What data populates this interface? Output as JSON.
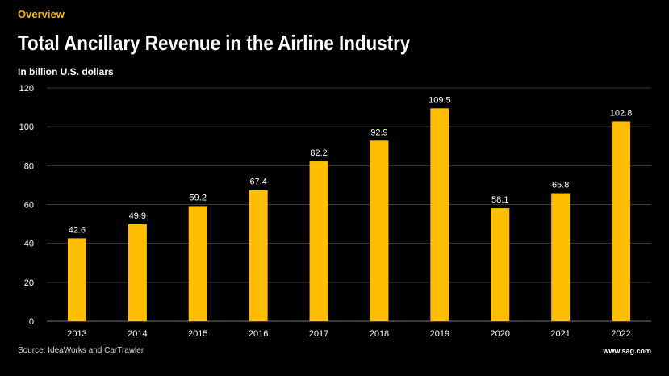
{
  "header": {
    "kicker": "Overview",
    "title": "Total Ancillary Revenue in the Airline Industry",
    "subtitle": "In billion U.S. dollars"
  },
  "footer": {
    "source": "Source: IdeaWorks and CarTrawler",
    "brand": "www.sag.com"
  },
  "colors": {
    "background": "#000000",
    "bar": "#FFBF00",
    "accent": "#FFB800",
    "grid": "#3a3a3a",
    "text": "#ffffff"
  },
  "chart_data": {
    "type": "bar",
    "title": "Total Ancillary Revenue in the Airline Industry",
    "ylabel": "In billion U.S. dollars",
    "xlabel": "",
    "categories": [
      "2013",
      "2014",
      "2015",
      "2016",
      "2017",
      "2018",
      "2019",
      "2020",
      "2021",
      "2022"
    ],
    "values": [
      42.6,
      49.9,
      59.2,
      67.4,
      82.2,
      92.9,
      109.5,
      58.1,
      65.8,
      102.8
    ],
    "data_labels": [
      "42.6",
      "49.9",
      "59.2",
      "67.4",
      "82.2",
      "92.9",
      "109.5",
      "58.1",
      "65.8",
      "102.8"
    ],
    "ylim": [
      0,
      120
    ],
    "yticks": [
      0,
      20,
      40,
      60,
      80,
      100,
      120
    ],
    "grid": true,
    "legend": "none"
  }
}
